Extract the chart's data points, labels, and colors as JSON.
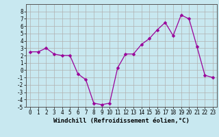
{
  "x": [
    0,
    1,
    2,
    3,
    4,
    5,
    6,
    7,
    8,
    9,
    10,
    11,
    12,
    13,
    14,
    15,
    16,
    17,
    18,
    19,
    20,
    21,
    22,
    23
  ],
  "y": [
    2.5,
    2.5,
    3.0,
    2.2,
    2.0,
    2.0,
    -0.5,
    -1.3,
    -4.5,
    -4.7,
    -4.5,
    0.3,
    2.2,
    2.2,
    3.5,
    4.3,
    5.5,
    6.5,
    4.7,
    7.5,
    7.0,
    3.2,
    -0.7,
    -1.0
  ],
  "line_color": "#990099",
  "marker": "D",
  "marker_size": 2.5,
  "bg_color": "#c8e8f0",
  "grid_color": "#b0b0b0",
  "xlabel": "Windchill (Refroidissement éolien,°C)",
  "ylim": [
    -5,
    9
  ],
  "xlim": [
    -0.5,
    23.5
  ],
  "xticks": [
    0,
    1,
    2,
    3,
    4,
    5,
    6,
    7,
    8,
    9,
    10,
    11,
    12,
    13,
    14,
    15,
    16,
    17,
    18,
    19,
    20,
    21,
    22,
    23
  ],
  "yticks": [
    -5,
    -4,
    -3,
    -2,
    -1,
    0,
    1,
    2,
    3,
    4,
    5,
    6,
    7,
    8
  ],
  "xlabel_fontsize": 6.5,
  "tick_fontsize": 5.5
}
